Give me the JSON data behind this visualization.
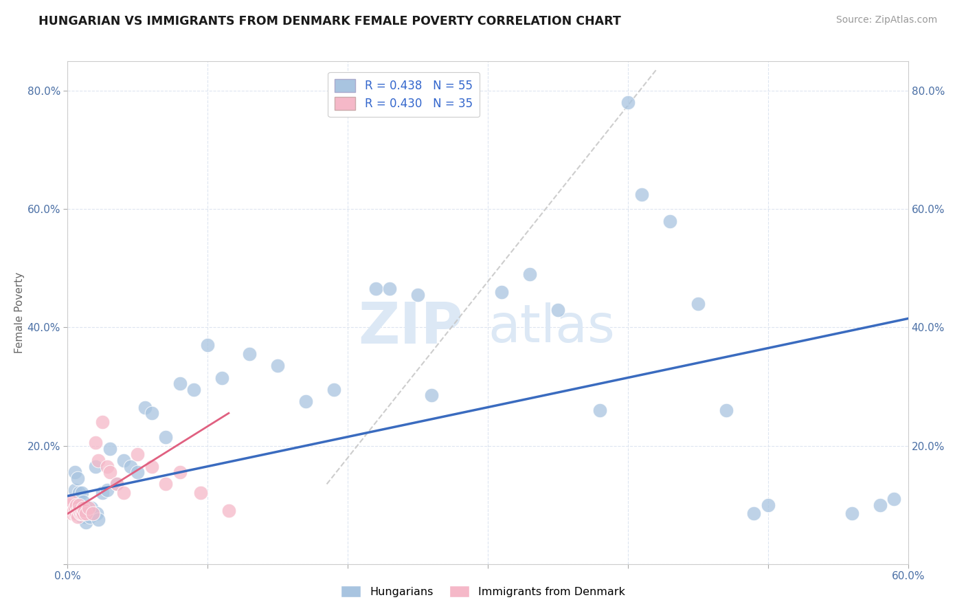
{
  "title": "HUNGARIAN VS IMMIGRANTS FROM DENMARK FEMALE POVERTY CORRELATION CHART",
  "source": "Source: ZipAtlas.com",
  "ylabel": "Female Poverty",
  "xlim": [
    0.0,
    0.6
  ],
  "ylim": [
    0.0,
    0.85
  ],
  "blue_R": 0.438,
  "blue_N": 55,
  "pink_R": 0.43,
  "pink_N": 35,
  "blue_color": "#a8c4e0",
  "pink_color": "#f5b8c8",
  "trendline_blue_color": "#3a6bbf",
  "trendline_pink_color": "#e06080",
  "trendline_dashed_color": "#c8c8c8",
  "watermark_color": "#dce8f5",
  "background_color": "#ffffff",
  "grid_color": "#dde5f0",
  "blue_trendline_x": [
    0.0,
    0.6
  ],
  "blue_trendline_y": [
    0.115,
    0.415
  ],
  "pink_trendline_x": [
    0.0,
    0.115
  ],
  "pink_trendline_y": [
    0.085,
    0.255
  ],
  "dashed_trendline_x": [
    0.185,
    0.42
  ],
  "dashed_trendline_y": [
    0.135,
    0.835
  ],
  "blue_x": [
    0.005,
    0.005,
    0.007,
    0.008,
    0.008,
    0.009,
    0.01,
    0.01,
    0.011,
    0.012,
    0.013,
    0.014,
    0.015,
    0.016,
    0.017,
    0.018,
    0.02,
    0.021,
    0.022,
    0.025,
    0.028,
    0.03,
    0.035,
    0.04,
    0.045,
    0.05,
    0.055,
    0.06,
    0.07,
    0.08,
    0.09,
    0.1,
    0.11,
    0.13,
    0.15,
    0.17,
    0.19,
    0.22,
    0.23,
    0.25,
    0.26,
    0.31,
    0.33,
    0.35,
    0.38,
    0.4,
    0.41,
    0.43,
    0.45,
    0.47,
    0.49,
    0.5,
    0.56,
    0.58,
    0.59
  ],
  "blue_y": [
    0.155,
    0.125,
    0.145,
    0.095,
    0.12,
    0.1,
    0.08,
    0.12,
    0.105,
    0.08,
    0.07,
    0.09,
    0.085,
    0.08,
    0.095,
    0.085,
    0.165,
    0.085,
    0.075,
    0.12,
    0.125,
    0.195,
    0.135,
    0.175,
    0.165,
    0.155,
    0.265,
    0.255,
    0.215,
    0.305,
    0.295,
    0.37,
    0.315,
    0.355,
    0.335,
    0.275,
    0.295,
    0.465,
    0.465,
    0.455,
    0.285,
    0.46,
    0.49,
    0.43,
    0.26,
    0.78,
    0.625,
    0.58,
    0.44,
    0.26,
    0.085,
    0.1,
    0.085,
    0.1,
    0.11
  ],
  "pink_x": [
    0.001,
    0.002,
    0.003,
    0.003,
    0.004,
    0.005,
    0.005,
    0.006,
    0.006,
    0.007,
    0.007,
    0.008,
    0.008,
    0.009,
    0.01,
    0.01,
    0.011,
    0.011,
    0.012,
    0.013,
    0.015,
    0.018,
    0.02,
    0.022,
    0.025,
    0.028,
    0.03,
    0.035,
    0.04,
    0.05,
    0.06,
    0.07,
    0.08,
    0.095,
    0.115
  ],
  "pink_y": [
    0.1,
    0.09,
    0.085,
    0.105,
    0.09,
    0.085,
    0.095,
    0.085,
    0.1,
    0.09,
    0.08,
    0.09,
    0.1,
    0.085,
    0.085,
    0.09,
    0.085,
    0.095,
    0.09,
    0.085,
    0.095,
    0.085,
    0.205,
    0.175,
    0.24,
    0.165,
    0.155,
    0.135,
    0.12,
    0.185,
    0.165,
    0.135,
    0.155,
    0.12,
    0.09
  ]
}
